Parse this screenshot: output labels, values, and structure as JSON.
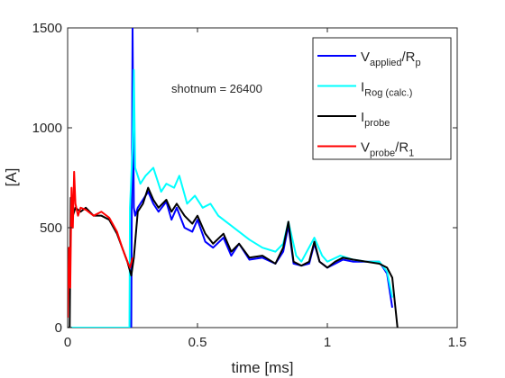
{
  "chart_data": {
    "type": "line",
    "xlabel": "time [ms]",
    "ylabel": "[A]",
    "annotation": "shotnum = 26400",
    "xlim": [
      0,
      1.5
    ],
    "xticks": [
      0,
      0.5,
      1,
      1.5
    ],
    "ylim": [
      0,
      1500
    ],
    "yticks": [
      0,
      500,
      1000,
      1500
    ],
    "grid": false,
    "legend": "northeast",
    "series": [
      {
        "name": [
          {
            "text": "V"
          },
          {
            "text": "applied",
            "sub": true
          },
          {
            "text": "/R"
          },
          {
            "text": "p",
            "sub": true
          }
        ],
        "color": "#0000ff",
        "x": [
          0,
          0.245,
          0.25,
          0.255,
          0.26,
          0.27,
          0.29,
          0.31,
          0.33,
          0.35,
          0.38,
          0.4,
          0.42,
          0.45,
          0.48,
          0.5,
          0.53,
          0.56,
          0.6,
          0.63,
          0.66,
          0.7,
          0.75,
          0.8,
          0.83,
          0.85,
          0.87,
          0.9,
          0.93,
          0.95,
          0.97,
          1.0,
          1.03,
          1.06,
          1.1,
          1.15,
          1.2,
          1.23,
          1.25
        ],
        "values": [
          0,
          0,
          1500,
          600,
          560,
          600,
          640,
          680,
          620,
          580,
          630,
          540,
          600,
          500,
          480,
          540,
          430,
          400,
          450,
          360,
          420,
          340,
          350,
          320,
          380,
          510,
          320,
          310,
          320,
          420,
          330,
          300,
          320,
          340,
          330,
          330,
          330,
          270,
          100
        ]
      },
      {
        "name": [
          {
            "text": "I"
          },
          {
            "text": "Rog (calc.)",
            "sub": true
          }
        ],
        "color": "#00ffff",
        "x": [
          0,
          0.238,
          0.24,
          0.25,
          0.255,
          0.26,
          0.28,
          0.3,
          0.33,
          0.36,
          0.38,
          0.41,
          0.43,
          0.46,
          0.49,
          0.52,
          0.55,
          0.58,
          0.62,
          0.66,
          0.7,
          0.75,
          0.8,
          0.83,
          0.85,
          0.88,
          0.9,
          0.95,
          0.98,
          1.0,
          1.05,
          1.1,
          1.15,
          1.2,
          1.23,
          1.25
        ],
        "values": [
          0,
          0,
          600,
          900,
          1290,
          800,
          720,
          760,
          800,
          680,
          720,
          700,
          760,
          620,
          660,
          600,
          620,
          560,
          520,
          480,
          440,
          400,
          380,
          420,
          530,
          360,
          330,
          450,
          360,
          330,
          360,
          340,
          330,
          330,
          280,
          150
        ]
      },
      {
        "name": [
          {
            "text": "I"
          },
          {
            "text": "probe",
            "sub": true
          }
        ],
        "color": "#000000",
        "x": [
          0,
          0.008,
          0.012,
          0.02,
          0.03,
          0.05,
          0.07,
          0.1,
          0.13,
          0.16,
          0.19,
          0.21,
          0.23,
          0.245,
          0.255,
          0.27,
          0.29,
          0.31,
          0.33,
          0.35,
          0.38,
          0.4,
          0.42,
          0.45,
          0.48,
          0.5,
          0.53,
          0.56,
          0.6,
          0.63,
          0.66,
          0.7,
          0.75,
          0.8,
          0.83,
          0.85,
          0.87,
          0.9,
          0.93,
          0.95,
          0.97,
          1.0,
          1.03,
          1.06,
          1.1,
          1.15,
          1.2,
          1.23,
          1.25,
          1.27
        ],
        "values": [
          0,
          0,
          650,
          560,
          600,
          580,
          600,
          560,
          560,
          540,
          470,
          400,
          330,
          260,
          350,
          580,
          620,
          700,
          640,
          600,
          640,
          580,
          620,
          560,
          520,
          560,
          470,
          420,
          470,
          380,
          420,
          350,
          360,
          320,
          400,
          530,
          330,
          310,
          330,
          430,
          330,
          300,
          330,
          350,
          340,
          330,
          320,
          300,
          250,
          0
        ]
      },
      {
        "name": [
          {
            "text": "V"
          },
          {
            "text": "probe",
            "sub": true
          },
          {
            "text": "/R"
          },
          {
            "text": "1",
            "sub": true
          }
        ],
        "color": "#ff0000",
        "x": [
          0,
          0.005,
          0.01,
          0.015,
          0.02,
          0.025,
          0.03,
          0.04,
          0.05,
          0.07,
          0.1,
          0.13,
          0.16,
          0.19,
          0.21,
          0.23,
          0.24,
          0.25
        ],
        "values": [
          50,
          400,
          200,
          700,
          500,
          780,
          620,
          560,
          600,
          590,
          560,
          580,
          550,
          480,
          400,
          330,
          300,
          350
        ]
      }
    ]
  }
}
